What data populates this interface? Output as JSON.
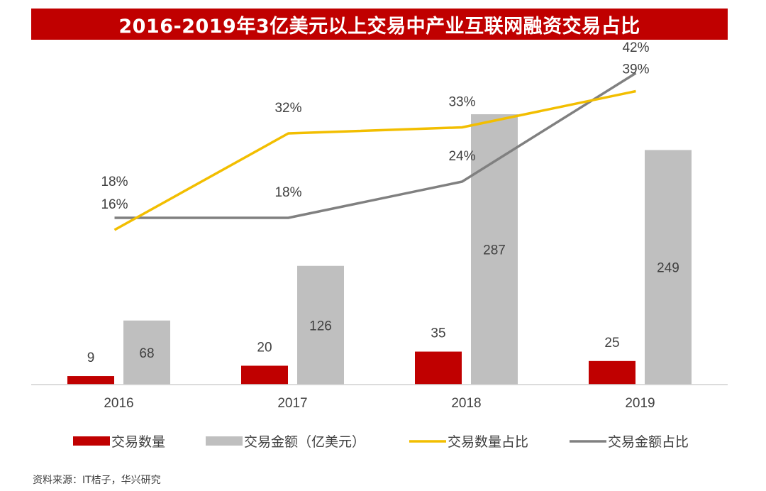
{
  "chart_data": {
    "type": "bar",
    "title": "2016-2019年3亿美元以上交易中产业互联网融资交易占比",
    "categories": [
      "2016",
      "2017",
      "2018",
      "2019"
    ],
    "series": [
      {
        "name": "交易数量",
        "kind": "bar",
        "values": [
          9,
          20,
          35,
          25
        ],
        "labels": [
          "9",
          "20",
          "35",
          "25"
        ],
        "color": "#c00000"
      },
      {
        "name": "交易金额（亿美元）",
        "kind": "bar",
        "values": [
          68,
          126,
          287,
          249
        ],
        "labels": [
          "68",
          "126",
          "287",
          "249"
        ],
        "color": "#bfbfbf"
      },
      {
        "name": "交易数量占比",
        "kind": "line",
        "values": [
          16,
          32,
          33,
          39
        ],
        "labels": [
          "16%",
          "32%",
          "33%",
          "39%"
        ],
        "color": "#f2be00"
      },
      {
        "name": "交易金额占比",
        "kind": "line",
        "values": [
          18,
          18,
          24,
          42
        ],
        "labels": [
          "18%",
          "18%",
          "24%",
          "42%"
        ],
        "color": "#808080"
      }
    ],
    "legend": {
      "position": "bottom",
      "items": [
        "交易数量",
        "交易金额（亿美元）",
        "交易数量占比",
        "交易金额占比"
      ]
    },
    "ylim_bars": [
      0,
      290
    ],
    "ylim_lines": [
      10,
      42
    ]
  },
  "footer": {
    "source": "资料来源：IT桔子，华兴研究"
  }
}
